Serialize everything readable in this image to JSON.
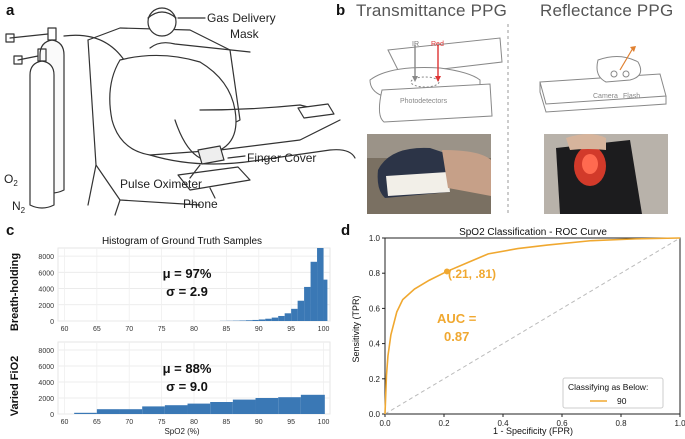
{
  "panel_a": {
    "letter": "a",
    "labels": {
      "gas_mask": "Gas Delivery\nMask",
      "finger_cover": "Finger Cover",
      "pulse_oximeter": "Pulse Oximeter",
      "phone": "Phone",
      "o2": "O",
      "o2_sub": "2",
      "n2": "N",
      "n2_sub": "2"
    }
  },
  "panel_b": {
    "letter": "b",
    "transmittance_title": "Transmittance PPG",
    "reflectance_title": "Reflectance PPG",
    "ir_label": "IR",
    "red_label": "Red",
    "photodetectors_label": "Photodetectors",
    "camera_label": "Camera",
    "flash_label": "Flash"
  },
  "panel_c": {
    "letter": "c",
    "title": "Histogram of Ground Truth Samples",
    "xlabel": "SpO2 (%)",
    "top_ylabel": "Breath-holding",
    "bottom_ylabel": "Varied FiO2",
    "top_stats": [
      "μ = 97%",
      "σ = 2.9"
    ],
    "bottom_stats": [
      "μ = 88%",
      "σ = 9.0"
    ],
    "colors": {
      "bar": "#3a78b5"
    }
  },
  "panel_d": {
    "letter": "d",
    "colors": {
      "curve": "#f0a830",
      "diag": "#bbbbbb"
    },
    "annotation": "(.21, .81)",
    "auc_line1": "AUC =",
    "auc_line2": "0.87",
    "legend_title": "Classifying as Below:",
    "legend_entry": "90"
  },
  "chart_data": [
    {
      "type": "bar",
      "title": "Histogram of Ground Truth Samples",
      "ylabel": "Breath-holding",
      "xlabel": "",
      "xlim": [
        59,
        101
      ],
      "ylim": [
        0,
        9000
      ],
      "xticks": [
        "60",
        "65",
        "70",
        "75",
        "80",
        "85",
        "90",
        "95",
        "100"
      ],
      "yticks": [
        "0",
        "2000",
        "4000",
        "6000",
        "8000"
      ],
      "bins": [
        {
          "x0": 84,
          "x1": 85,
          "v": 15
        },
        {
          "x0": 85,
          "x1": 86,
          "v": 25
        },
        {
          "x0": 86,
          "x1": 87,
          "v": 40
        },
        {
          "x0": 87,
          "x1": 88,
          "v": 60
        },
        {
          "x0": 88,
          "x1": 89,
          "v": 90
        },
        {
          "x0": 89,
          "x1": 90,
          "v": 130
        },
        {
          "x0": 90,
          "x1": 91,
          "v": 190
        },
        {
          "x0": 91,
          "x1": 92,
          "v": 280
        },
        {
          "x0": 92,
          "x1": 93,
          "v": 420
        },
        {
          "x0": 93,
          "x1": 94,
          "v": 620
        },
        {
          "x0": 94,
          "x1": 95,
          "v": 950
        },
        {
          "x0": 95,
          "x1": 96,
          "v": 1500
        },
        {
          "x0": 96,
          "x1": 97,
          "v": 2500
        },
        {
          "x0": 97,
          "x1": 98,
          "v": 4200
        },
        {
          "x0": 98,
          "x1": 99,
          "v": 7300
        },
        {
          "x0": 99,
          "x1": 100,
          "v": 9000
        },
        {
          "x0": 100,
          "x1": 100.6,
          "v": 5100
        }
      ]
    },
    {
      "type": "bar",
      "title": "",
      "ylabel": "Varied FiO2",
      "xlabel": "SpO2 (%)",
      "xlim": [
        59,
        101
      ],
      "ylim": [
        0,
        9000
      ],
      "xticks": [
        "60",
        "65",
        "70",
        "75",
        "80",
        "85",
        "90",
        "95",
        "100"
      ],
      "yticks": [
        "0",
        "2000",
        "4000",
        "6000",
        "8000"
      ],
      "bins": [
        {
          "x0": 61.5,
          "x1": 65,
          "v": 150
        },
        {
          "x0": 65,
          "x1": 68.5,
          "v": 600
        },
        {
          "x0": 68.5,
          "x1": 72,
          "v": 600
        },
        {
          "x0": 72,
          "x1": 75.5,
          "v": 950
        },
        {
          "x0": 75.5,
          "x1": 79,
          "v": 1100
        },
        {
          "x0": 79,
          "x1": 82.5,
          "v": 1300
        },
        {
          "x0": 82.5,
          "x1": 86,
          "v": 1500
        },
        {
          "x0": 86,
          "x1": 89.5,
          "v": 1800
        },
        {
          "x0": 89.5,
          "x1": 93,
          "v": 2000
        },
        {
          "x0": 93,
          "x1": 96.5,
          "v": 2100
        },
        {
          "x0": 96.5,
          "x1": 100.2,
          "v": 2400
        }
      ]
    },
    {
      "type": "line",
      "title": "SpO2 Classification - ROC Curve",
      "xlabel": "1 - Specificity (FPR)",
      "ylabel": "Sensitivity (TPR)",
      "xlim": [
        0,
        1
      ],
      "ylim": [
        0,
        1
      ],
      "xticks": [
        "0.0",
        "0.2",
        "0.4",
        "0.6",
        "0.8",
        "1.0"
      ],
      "yticks": [
        "0.0",
        "0.2",
        "0.4",
        "0.6",
        "0.8",
        "1.0"
      ],
      "legend": "lower-right",
      "series": [
        {
          "name": "90",
          "x": [
            0,
            0.005,
            0.01,
            0.02,
            0.04,
            0.06,
            0.1,
            0.15,
            0.21,
            0.28,
            0.35,
            0.45,
            0.55,
            0.7,
            0.85,
            1.0
          ],
          "y": [
            0,
            0.22,
            0.33,
            0.45,
            0.58,
            0.65,
            0.71,
            0.76,
            0.81,
            0.86,
            0.91,
            0.94,
            0.96,
            0.985,
            0.995,
            1.0
          ]
        }
      ],
      "marker": {
        "x": 0.21,
        "y": 0.81
      }
    }
  ]
}
